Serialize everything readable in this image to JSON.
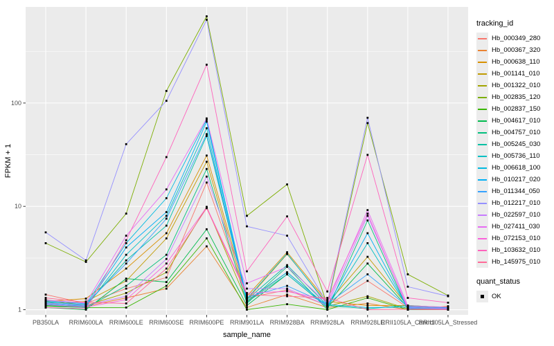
{
  "figure": {
    "background": "#FFFFFF",
    "panel_background": "#EBEBEB",
    "gridline_color": "#FFFFFF",
    "tick_color": "#333333",
    "tick_label_color": "#4D4D4D",
    "axis_title_color": "#000000",
    "point_color": "#000000"
  },
  "legend": {
    "tracking_title": "tracking_id",
    "quant_title": "quant_status",
    "quant_items": [
      {
        "label": "OK",
        "shape": "filled-square",
        "color": "#000000"
      }
    ]
  },
  "chart_data": {
    "type": "line",
    "title": "",
    "xlabel": "sample_name",
    "ylabel": "FPKM + 1",
    "y_scale": "log10",
    "y_ticks": [
      1,
      10,
      100
    ],
    "y_minor_gridlines": [
      3.16,
      31.6,
      316
    ],
    "ylim": [
      0.9,
      850
    ],
    "grid": true,
    "legend_position": "right",
    "point_shape": "filled-square",
    "categories": [
      "PB350LA",
      "RRIM600LA",
      "RRIM600LE",
      "RRIM600SE",
      "RRIM600PE",
      "RRIM901LA",
      "RRIM928BA",
      "RRIM928LA",
      "RRIM928LE",
      "RRII105LA_Control",
      "RRII105LA_Stressed"
    ],
    "series": [
      {
        "name": "Hb_000349_280",
        "color": "#F8766D",
        "values": [
          1.4,
          1.15,
          1.6,
          2.05,
          17,
          1.3,
          1.55,
          1.1,
          1.9,
          1.05,
          1.02
        ]
      },
      {
        "name": "Hb_000367_320",
        "color": "#EA8331",
        "values": [
          1.1,
          1.08,
          1.3,
          1.6,
          4.1,
          1.05,
          1.4,
          1.05,
          1.15,
          1.0,
          1.08
        ]
      },
      {
        "name": "Hb_000638_110",
        "color": "#D89000",
        "values": [
          1.2,
          1.28,
          2.5,
          5.5,
          31,
          1.35,
          3.6,
          1.2,
          1.1,
          1.1,
          1.05
        ]
      },
      {
        "name": "Hb_001141_010",
        "color": "#C09B00",
        "values": [
          1.15,
          1.2,
          1.9,
          4.9,
          27,
          1.25,
          3.45,
          1.15,
          3.25,
          1.08,
          1.03
        ]
      },
      {
        "name": "Hb_001322_010",
        "color": "#A3A500",
        "values": [
          1.25,
          1.1,
          1.45,
          2.3,
          9.9,
          1.2,
          2.3,
          1.08,
          1.35,
          1.02,
          1.0
        ]
      },
      {
        "name": "Hb_002835_120",
        "color": "#7CAE00",
        "values": [
          4.4,
          2.9,
          8.5,
          131,
          690,
          8.1,
          16.3,
          1.1,
          64,
          2.2,
          1.37
        ]
      },
      {
        "name": "Hb_002837_150",
        "color": "#39B600",
        "values": [
          1.08,
          1.05,
          1.05,
          1.7,
          4.9,
          1.0,
          1.13,
          1.0,
          1.3,
          1.0,
          1.0
        ]
      },
      {
        "name": "Hb_004617_010",
        "color": "#00BB4E",
        "values": [
          1.05,
          1.0,
          2.0,
          1.85,
          6.0,
          1.1,
          2.2,
          1.05,
          2.8,
          1.05,
          1.0
        ]
      },
      {
        "name": "Hb_004757_010",
        "color": "#00BF7D",
        "values": [
          1.1,
          1.05,
          1.7,
          3.4,
          23,
          1.15,
          2.6,
          1.0,
          7.3,
          1.0,
          1.02
        ]
      },
      {
        "name": "Hb_005245_030",
        "color": "#00C1A3",
        "values": [
          1.2,
          1.1,
          3.0,
          6.5,
          48,
          1.25,
          2.7,
          1.1,
          1.02,
          1.1,
          1.05
        ]
      },
      {
        "name": "Hb_005736_110",
        "color": "#00BFC4",
        "values": [
          1.12,
          1.06,
          3.4,
          8.1,
          57,
          1.18,
          2.2,
          1.06,
          4.4,
          1.04,
          1.01
        ]
      },
      {
        "name": "Hb_006618_100",
        "color": "#00BAE0",
        "values": [
          1.18,
          1.12,
          4.4,
          12,
          69,
          1.28,
          3.5,
          1.12,
          1.05,
          1.06,
          1.02
        ]
      },
      {
        "name": "Hb_010217_020",
        "color": "#00B0F6",
        "values": [
          1.14,
          1.08,
          4.0,
          8.8,
          66,
          1.22,
          2.3,
          1.08,
          5.5,
          1.03,
          1.0
        ]
      },
      {
        "name": "Hb_011344_050",
        "color": "#35A2FF",
        "values": [
          1.22,
          1.14,
          2.8,
          7.6,
          50,
          1.32,
          1.7,
          1.14,
          2.2,
          1.07,
          1.04
        ]
      },
      {
        "name": "Hb_012217_010",
        "color": "#9590FF",
        "values": [
          5.6,
          3.0,
          40,
          105,
          640,
          6.4,
          5.2,
          1.15,
          72,
          1.67,
          1.35
        ]
      },
      {
        "name": "Hb_022597_010",
        "color": "#C77CFF",
        "values": [
          1.16,
          1.1,
          1.35,
          3.1,
          19.4,
          1.6,
          1.6,
          1.1,
          8.1,
          1.05,
          1.03
        ]
      },
      {
        "name": "Hb_027411_030",
        "color": "#E76BF3",
        "values": [
          1.24,
          1.16,
          5.2,
          14.6,
          71,
          1.8,
          2.6,
          1.16,
          9.2,
          1.09,
          1.06
        ]
      },
      {
        "name": "Hb_072153_010",
        "color": "#FA62DB",
        "values": [
          1.12,
          1.06,
          1.25,
          2.8,
          9.8,
          1.45,
          1.5,
          1.25,
          8.5,
          1.02,
          1.01
        ]
      },
      {
        "name": "Hb_103632_010",
        "color": "#FF62BC",
        "values": [
          1.05,
          1.02,
          4.7,
          30,
          235,
          2.35,
          8.0,
          1.5,
          31.5,
          1.3,
          1.17
        ]
      },
      {
        "name": "Hb_145975_010",
        "color": "#FF6A98",
        "values": [
          1.3,
          1.18,
          1.15,
          2.5,
          9.6,
          1.4,
          1.35,
          1.3,
          1.0,
          1.01,
          1.0
        ]
      }
    ]
  }
}
